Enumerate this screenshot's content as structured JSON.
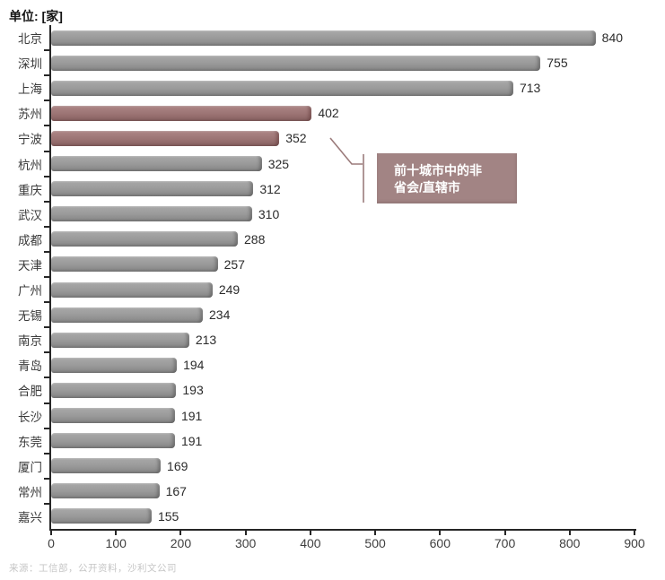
{
  "source": "来源：工信部，公开资料，沙利文公司",
  "chart_data": {
    "type": "bar",
    "orientation": "horizontal",
    "unit_label": "单位: [家]",
    "title": "",
    "xlabel": "",
    "ylabel": "",
    "categories": [
      "北京",
      "深圳",
      "上海",
      "苏州",
      "宁波",
      "杭州",
      "重庆",
      "武汉",
      "成都",
      "天津",
      "广州",
      "无锡",
      "南京",
      "青岛",
      "合肥",
      "长沙",
      "东莞",
      "厦门",
      "常州",
      "嘉兴"
    ],
    "values": [
      840,
      755,
      713,
      402,
      352,
      325,
      312,
      310,
      288,
      257,
      249,
      234,
      213,
      194,
      193,
      191,
      191,
      169,
      167,
      155
    ],
    "highlighted_categories": [
      "苏州",
      "宁波"
    ],
    "xlim": [
      0,
      900
    ],
    "x_ticks": [
      0,
      100,
      200,
      300,
      400,
      500,
      600,
      700,
      800,
      900
    ],
    "grid": "off",
    "annotation": "前十城市中的非省会/直辖市",
    "annotation_lines": [
      "前十城市中的非",
      "省会/直辖市"
    ],
    "colors": {
      "bar": "#9b9b9b",
      "highlight": "#9c7373",
      "annotation_bg": "#a28484",
      "callout_line": "#9b7b7b",
      "axis": "#262626",
      "source_text": "#c6c6c6"
    }
  }
}
